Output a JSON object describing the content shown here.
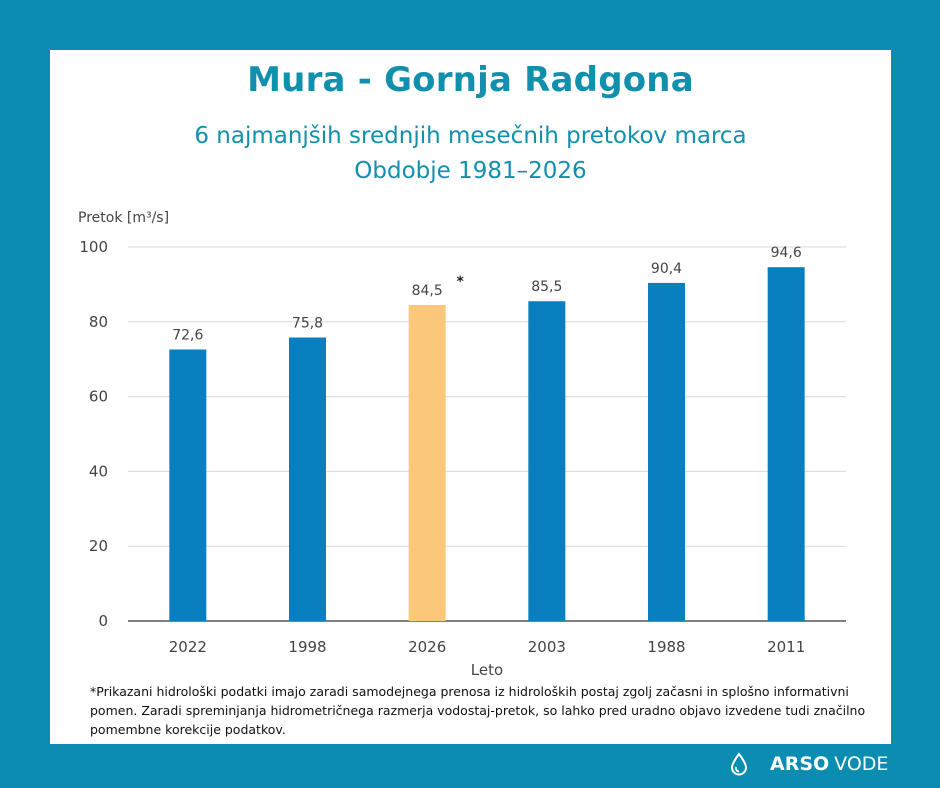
{
  "title": "Mura - Gornja Radgona",
  "subtitle": "6 najmanjših srednjih mesečnih pretokov marca",
  "period": "Obdobje 1981–2026",
  "chart_data": {
    "type": "bar",
    "categories": [
      "2022",
      "1998",
      "2026",
      "2003",
      "1988",
      "2011"
    ],
    "values": [
      72.6,
      75.8,
      84.5,
      85.5,
      90.4,
      94.6
    ],
    "value_labels": [
      "72,6",
      "75,8",
      "84,5",
      "85,5",
      "90,4",
      "94,6"
    ],
    "highlight_index": 2,
    "highlight_marker": "*",
    "ylabel": "Pretok [m³/s]",
    "xlabel": "Leto",
    "ylim": [
      0,
      100
    ],
    "yticks": [
      0,
      20,
      40,
      60,
      80,
      100
    ],
    "grid": true,
    "colors": {
      "bar": "#0a7fbf",
      "highlight": "#fbc77b",
      "grid": "#d9d9d9",
      "text": "#444444"
    }
  },
  "footnote": "*Prikazani hidrološki podatki imajo zaradi samodejnega prenosa iz hidroloških postaj zgolj začasni in splošno informativni pomen. Zaradi spreminjanja hidrometričnega razmerja vodostaj-pretok, so lahko pred uradno objavo izvedene tudi značilno pomembne korekcije podatkov.",
  "logo": {
    "icon": "water-drop-icon",
    "brand": "ARSO",
    "product": "VODE"
  }
}
